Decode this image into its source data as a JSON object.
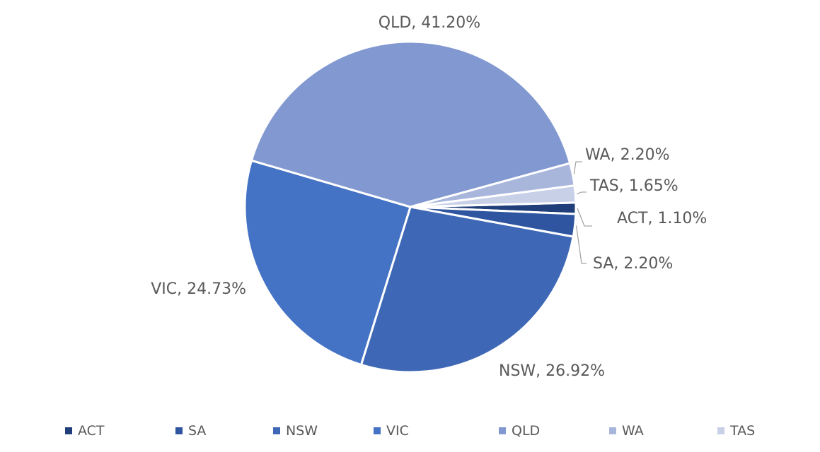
{
  "chart_data": {
    "type": "pie",
    "title": "",
    "unit": "%",
    "legend_position": "bottom",
    "slices": [
      {
        "name": "ACT",
        "value": 1.1,
        "label": "ACT, 1.10%",
        "color": "#203f7a"
      },
      {
        "name": "SA",
        "value": 2.2,
        "label": "SA, 2.20%",
        "color": "#2f55a0"
      },
      {
        "name": "NSW",
        "value": 26.92,
        "label": "NSW, 26.92%",
        "color": "#3e68b5"
      },
      {
        "name": "VIC",
        "value": 24.73,
        "label": "VIC, 24.73%",
        "color": "#4472c4"
      },
      {
        "name": "QLD",
        "value": 41.2,
        "label": "QLD, 41.20%",
        "color": "#8298d0"
      },
      {
        "name": "WA",
        "value": 2.2,
        "label": "WA, 2.20%",
        "color": "#a8b6dc"
      },
      {
        "name": "TAS",
        "value": 1.65,
        "label": "TAS, 1.65%",
        "color": "#c8d0e8"
      }
    ]
  }
}
